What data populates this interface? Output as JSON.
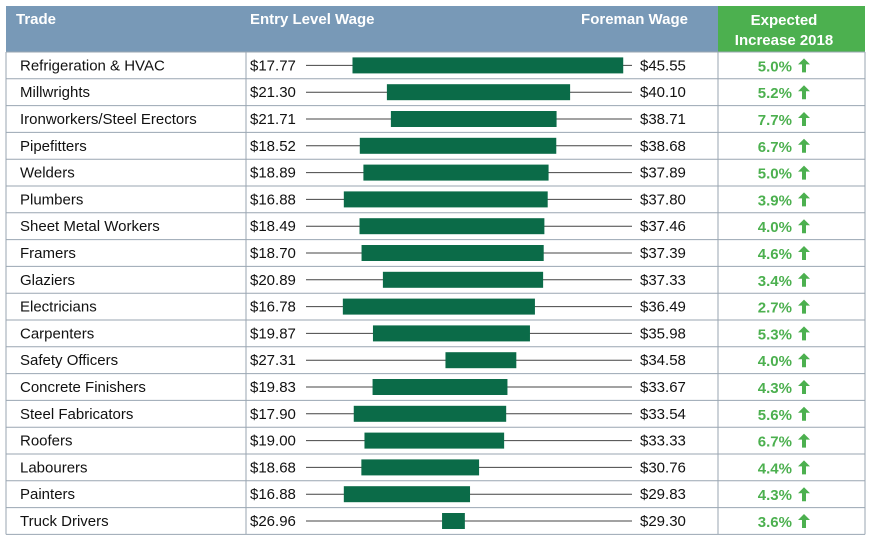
{
  "header": {
    "trade": "Trade",
    "entry": "Entry Level Wage",
    "foreman": "Foreman Wage",
    "increase_line1": "Expected",
    "increase_line2": "Increase 2018"
  },
  "colors": {
    "header_bg": "#7899b7",
    "increase_header_bg": "#4cb04f",
    "bar": "#0b6b48",
    "increase_text": "#4cb04f",
    "border": "#9aa6b2"
  },
  "icons": {
    "increase": "arrow-up-icon"
  },
  "chart_data": {
    "type": "bar",
    "title": "",
    "categories": [
      "Refrigeration & HVAC",
      "Millwrights",
      "Ironworkers/Steel Erectors",
      "Pipefitters",
      "Welders",
      "Plumbers",
      "Sheet Metal Workers",
      "Framers",
      "Glaziers",
      "Electricians",
      "Carpenters",
      "Safety Officers",
      "Concrete Finishers",
      "Steel Fabricators",
      "Roofers",
      "Labourers",
      "Painters",
      "Truck Drivers"
    ],
    "entry_labels": [
      "$17.77",
      "$21.30",
      "$21.71",
      "$18.52",
      "$18.89",
      "$16.88",
      "$18.49",
      "$18.70",
      "$20.89",
      "$16.78",
      "$19.87",
      "$27.31",
      "$19.83",
      "$17.90",
      "$19.00",
      "$18.68",
      "$16.88",
      "$26.96"
    ],
    "foreman_labels": [
      "$45.55",
      "$40.10",
      "$38.71",
      "$38.68",
      "$37.89",
      "$37.80",
      "$37.46",
      "$37.39",
      "$37.33",
      "$36.49",
      "$35.98",
      "$34.58",
      "$33.67",
      "$33.54",
      "$33.33",
      "$30.76",
      "$29.83",
      "$29.30"
    ],
    "entry": [
      17.77,
      21.3,
      21.71,
      18.52,
      18.89,
      16.88,
      18.49,
      18.7,
      20.89,
      16.78,
      19.87,
      27.31,
      19.83,
      17.9,
      19.0,
      18.68,
      16.88,
      26.96
    ],
    "foreman": [
      45.55,
      40.1,
      38.71,
      38.68,
      37.89,
      37.8,
      37.46,
      37.39,
      37.33,
      36.49,
      35.98,
      34.58,
      33.67,
      33.54,
      33.33,
      30.76,
      29.83,
      29.3
    ],
    "increase_labels": [
      "5.0%",
      "5.2%",
      "7.7%",
      "6.7%",
      "5.0%",
      "3.9%",
      "4.0%",
      "4.6%",
      "3.4%",
      "2.7%",
      "5.3%",
      "4.0%",
      "4.3%",
      "5.6%",
      "6.7%",
      "4.4%",
      "4.3%",
      "3.6%"
    ],
    "increase": [
      5.0,
      5.2,
      7.7,
      6.7,
      5.0,
      3.9,
      4.0,
      4.6,
      3.4,
      2.7,
      5.3,
      4.0,
      4.3,
      5.6,
      6.7,
      4.4,
      4.3,
      3.6
    ]
  }
}
